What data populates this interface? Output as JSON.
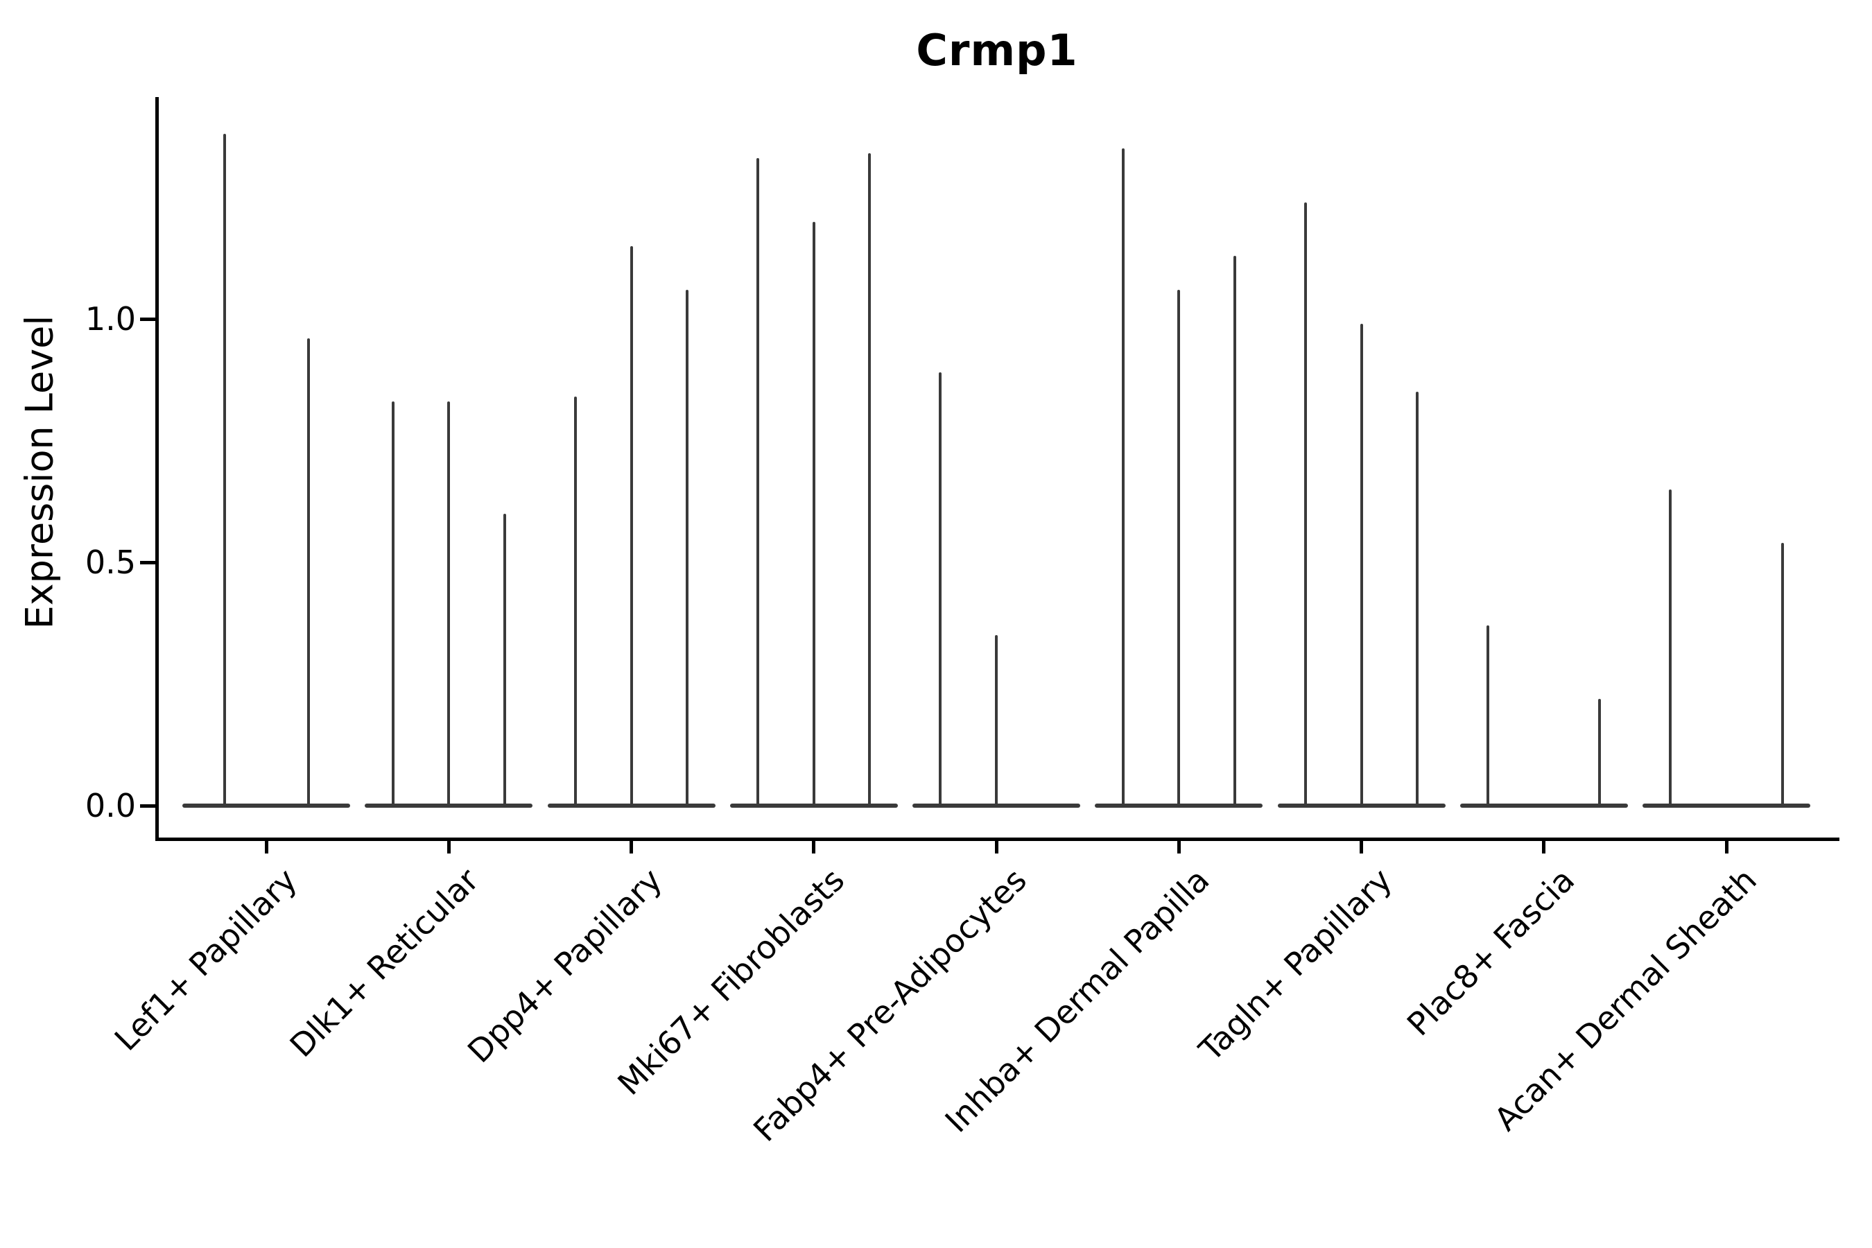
{
  "title": "Crmp1",
  "ylabel": "Expression Level",
  "colors": {
    "violin": "#3a3a3a",
    "axis": "#000000",
    "background": "#ffffff"
  },
  "chart_data": {
    "type": "violin",
    "title": "Crmp1",
    "xlabel": "",
    "ylabel": "Expression Level",
    "grid": false,
    "legend": "none",
    "ylim": [
      -0.07,
      1.46
    ],
    "yticks": [
      {
        "label": "0.0",
        "value": 0.0
      },
      {
        "label": "0.5",
        "value": 0.5
      },
      {
        "label": "1.0",
        "value": 1.0
      }
    ],
    "xtick_label_rotation_deg": 45,
    "description": "Violin plot of Crmp1 expression; each group holds 2-3 narrow violins whose mass sits at 0 with a thin tail reaching the listed peak expression value (0 = flat violin, no tail).",
    "categories": [
      "Lef1+ Papillary",
      "Dlk1+ Reticular",
      "Dpp4+ Papillary",
      "Mki67+ Fibroblasts",
      "Fabp4+ Pre-Adipocytes",
      "Inhba+ Dermal Papilla",
      "Tagln+ Papillary",
      "Plac8+ Fascia",
      "Acan+ Dermal Sheath"
    ],
    "groups": [
      {
        "label": "Lef1+ Papillary",
        "violin_peaks": [
          1.38,
          0.96
        ]
      },
      {
        "label": "Dlk1+ Reticular",
        "violin_peaks": [
          0.83,
          0.83,
          0.6
        ]
      },
      {
        "label": "Dpp4+ Papillary",
        "violin_peaks": [
          0.84,
          1.15,
          1.06
        ]
      },
      {
        "label": "Mki67+ Fibroblasts",
        "violin_peaks": [
          1.33,
          1.2,
          1.34
        ]
      },
      {
        "label": "Fabp4+ Pre-Adipocytes",
        "violin_peaks": [
          0.89,
          0.35,
          0.0
        ]
      },
      {
        "label": "Inhba+ Dermal Papilla",
        "violin_peaks": [
          1.35,
          1.06,
          1.13
        ]
      },
      {
        "label": "Tagln+ Papillary",
        "violin_peaks": [
          1.24,
          0.99,
          0.85
        ]
      },
      {
        "label": "Plac8+ Fascia",
        "violin_peaks": [
          0.37,
          0.0,
          0.22
        ]
      },
      {
        "label": "Acan+ Dermal Sheath",
        "violin_peaks": [
          0.65,
          0.0,
          0.54
        ]
      }
    ]
  }
}
